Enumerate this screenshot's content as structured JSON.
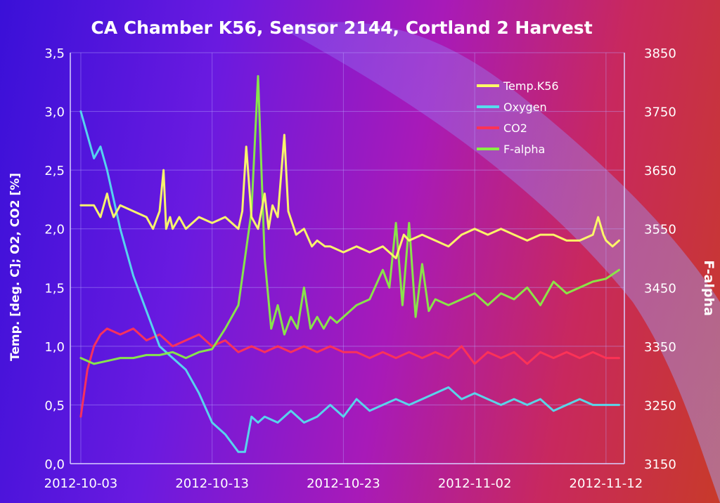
{
  "chart_data": {
    "type": "line",
    "title": "CA Chamber K56, Sensor 2144, Cortland 2 Harvest",
    "ylabel": "Temp. [deg. C]; O2, CO2 [%]",
    "y2label": "F-alpha",
    "ylim": [
      0,
      3.5
    ],
    "y2lim": [
      3150,
      3850
    ],
    "yticks": [
      "0,0",
      "0,5",
      "1,0",
      "1,5",
      "2,0",
      "2,5",
      "3,0",
      "3,5"
    ],
    "y2ticks": [
      "3150",
      "3250",
      "3350",
      "3450",
      "3550",
      "3650",
      "3750",
      "3850"
    ],
    "xticks": [
      "2012-10-03",
      "2012-10-13",
      "2012-10-23",
      "2012-11-02",
      "2012-11-12"
    ],
    "xlim_days": [
      -0.8,
      41.4
    ],
    "grid": true,
    "legend_position": "top-right",
    "series": [
      {
        "name": "Temp.K56",
        "axis": "left",
        "color": "#ffff66",
        "x": [
          0,
          1,
          1.5,
          2,
          2.2,
          2.5,
          3,
          4,
          5,
          5.5,
          6,
          6.3,
          6.5,
          6.8,
          7,
          7.5,
          8,
          9,
          10,
          11,
          12,
          12.3,
          12.6,
          13,
          13.5,
          14,
          14.3,
          14.6,
          15,
          15.5,
          15.8,
          16.1,
          16.4,
          17,
          17.6,
          18,
          18.6,
          19,
          20,
          21,
          22,
          23,
          24,
          24.3,
          24.6,
          25,
          26,
          27,
          28,
          29,
          30,
          31,
          32,
          33,
          34,
          35,
          36,
          37,
          38,
          39,
          39.4,
          39.8,
          40,
          40.5,
          41
        ],
        "y": [
          2.2,
          2.2,
          2.1,
          2.3,
          2.2,
          2.1,
          2.2,
          2.15,
          2.1,
          2.0,
          2.15,
          2.5,
          2.0,
          2.1,
          2.0,
          2.1,
          2.0,
          2.1,
          2.05,
          2.1,
          2.0,
          2.15,
          2.7,
          2.1,
          2.0,
          2.3,
          2.0,
          2.2,
          2.1,
          2.8,
          2.15,
          2.05,
          1.95,
          2.0,
          1.85,
          1.9,
          1.85,
          1.85,
          1.8,
          1.85,
          1.8,
          1.85,
          1.75,
          1.85,
          1.95,
          1.9,
          1.95,
          1.9,
          1.85,
          1.95,
          2.0,
          1.95,
          2.0,
          1.95,
          1.9,
          1.95,
          1.95,
          1.9,
          1.9,
          1.95,
          2.1,
          1.95,
          1.9,
          1.85,
          1.9
        ]
      },
      {
        "name": "Oxygen",
        "axis": "left",
        "color": "#55ddee",
        "x": [
          0,
          1,
          1.5,
          2,
          3,
          4,
          5,
          6,
          7,
          8,
          9,
          10,
          11,
          12,
          12.5,
          13,
          13.5,
          14,
          15,
          16,
          17,
          18,
          19,
          20,
          21,
          22,
          23,
          24,
          25,
          26,
          27,
          28,
          29,
          30,
          31,
          32,
          33,
          34,
          35,
          36,
          37,
          38,
          39,
          40,
          41
        ],
        "y": [
          3.0,
          2.6,
          2.7,
          2.5,
          2.0,
          1.6,
          1.3,
          1.0,
          0.9,
          0.8,
          0.6,
          0.35,
          0.25,
          0.1,
          0.1,
          0.4,
          0.35,
          0.4,
          0.35,
          0.45,
          0.35,
          0.4,
          0.5,
          0.4,
          0.55,
          0.45,
          0.5,
          0.55,
          0.5,
          0.55,
          0.6,
          0.65,
          0.55,
          0.6,
          0.55,
          0.5,
          0.55,
          0.5,
          0.55,
          0.45,
          0.5,
          0.55,
          0.5,
          0.5,
          0.5
        ]
      },
      {
        "name": "CO2",
        "axis": "left",
        "color": "#ff3355",
        "x": [
          0,
          0.5,
          1,
          1.5,
          2,
          3,
          4,
          5,
          6,
          7,
          8,
          9,
          10,
          11,
          12,
          13,
          14,
          15,
          16,
          17,
          18,
          19,
          20,
          21,
          22,
          23,
          24,
          25,
          26,
          27,
          28,
          29,
          30,
          31,
          32,
          33,
          34,
          35,
          36,
          37,
          38,
          39,
          40,
          41
        ],
        "y": [
          0.4,
          0.8,
          1.0,
          1.1,
          1.15,
          1.1,
          1.15,
          1.05,
          1.1,
          1.0,
          1.05,
          1.1,
          1.0,
          1.05,
          0.95,
          1.0,
          0.95,
          1.0,
          0.95,
          1.0,
          0.95,
          1.0,
          0.95,
          0.95,
          0.9,
          0.95,
          0.9,
          0.95,
          0.9,
          0.95,
          0.9,
          1.0,
          0.85,
          0.95,
          0.9,
          0.95,
          0.85,
          0.95,
          0.9,
          0.95,
          0.9,
          0.95,
          0.9,
          0.9
        ]
      },
      {
        "name": "F-alpha",
        "axis": "right",
        "color": "#88ee44",
        "x": [
          0,
          1,
          2,
          3,
          4,
          5,
          6,
          7,
          8,
          9,
          10,
          11,
          12,
          12.5,
          13,
          13.5,
          14,
          14.5,
          15,
          15.5,
          16,
          16.5,
          17,
          17.5,
          18,
          18.5,
          19,
          19.5,
          20,
          21,
          22,
          23,
          23.5,
          24,
          24.5,
          25,
          25.5,
          26,
          26.5,
          27,
          28,
          29,
          30,
          31,
          32,
          33,
          34,
          35,
          36,
          37,
          38,
          39,
          40,
          41
        ],
        "y": [
          3330,
          3320,
          3325,
          3330,
          3330,
          3335,
          3335,
          3340,
          3330,
          3340,
          3345,
          3380,
          3420,
          3500,
          3580,
          3810,
          3500,
          3380,
          3420,
          3370,
          3400,
          3380,
          3450,
          3380,
          3400,
          3380,
          3400,
          3390,
          3400,
          3420,
          3430,
          3480,
          3450,
          3560,
          3420,
          3560,
          3400,
          3490,
          3410,
          3430,
          3420,
          3430,
          3440,
          3420,
          3440,
          3430,
          3450,
          3420,
          3460,
          3440,
          3450,
          3460,
          3465,
          3480
        ]
      }
    ]
  }
}
